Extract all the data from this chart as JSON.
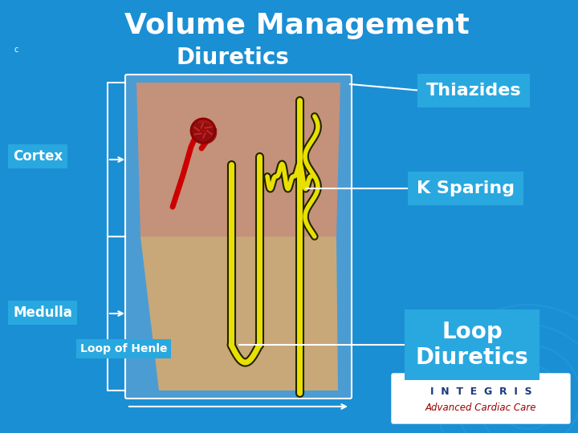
{
  "title": "Volume Management",
  "subtitle": "Diuretics",
  "bg_color": "#1B8FD4",
  "title_color": "white",
  "subtitle_color": "white",
  "labels": {
    "cortex": "Cortex",
    "medulla": "Medulla",
    "loop_henle": "Loop of Henle",
    "thiazides": "Thiazides",
    "k_sparing": "K Sparing",
    "loop_diuretics": "Loop\nDiuretics"
  },
  "label_box_color": "#29A8E0",
  "label_text_color": "white",
  "kidney_bg_color": "#4B9CD3",
  "cortex_color": "#C4917A",
  "medulla_color": "#C8A878",
  "outline_color": "white",
  "small_dot": "c",
  "integris_box_color": "white",
  "yellow_tube": "#E8E000",
  "tube_outline": "#222200",
  "red_struct": "#CC0000"
}
